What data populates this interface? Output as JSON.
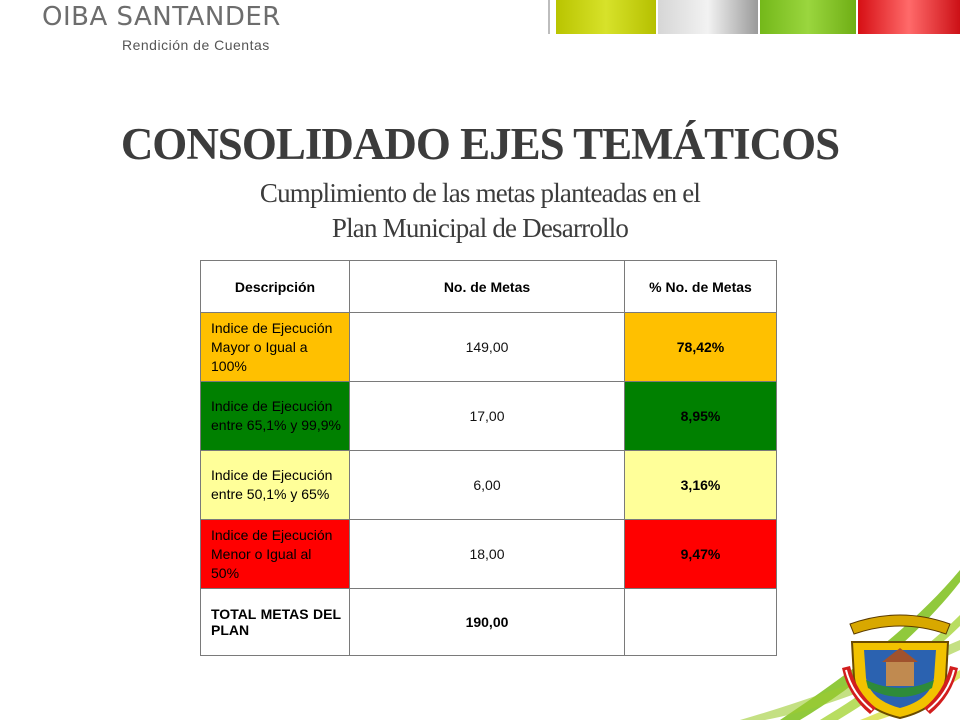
{
  "header": {
    "brand": "OIBA SANTANDER",
    "brand_sub": "Rendición de Cuentas",
    "strip_colors": [
      "#c8d400",
      "#9e9e9e",
      "#7fbf1e",
      "#e0181e"
    ]
  },
  "title": "CONSOLIDADO EJES TEMÁTICOS",
  "subtitle_line1": "Cumplimiento de las metas planteadas en el",
  "subtitle_line2": "Plan Municipal de Desarrollo",
  "table": {
    "headers": [
      "Descripción",
      "No. de Metas",
      "% No. de Metas"
    ],
    "rows": [
      {
        "descripcion": "Indice de Ejecución Mayor o Igual a 100%",
        "metas": "149,00",
        "porcentaje": "78,42%",
        "color": "#ffc000",
        "text_color": "#000000"
      },
      {
        "descripcion": "Indice de Ejecución entre 65,1% y 99,9%",
        "metas": "17,00",
        "porcentaje": "8,95%",
        "color": "#008000",
        "text_color": "#000000"
      },
      {
        "descripcion": "Indice de Ejecución entre 50,1% y 65%",
        "metas": "6,00",
        "porcentaje": "3,16%",
        "color": "#ffff99",
        "text_color": "#000000"
      },
      {
        "descripcion": "Indice de Ejecución Menor o Igual al 50%",
        "metas": "18,00",
        "porcentaje": "9,47%",
        "color": "#ff0000",
        "text_color": "#000000"
      }
    ],
    "total": {
      "label": "TOTAL METAS DEL PLAN",
      "value": "190,00",
      "porcentaje": ""
    }
  }
}
